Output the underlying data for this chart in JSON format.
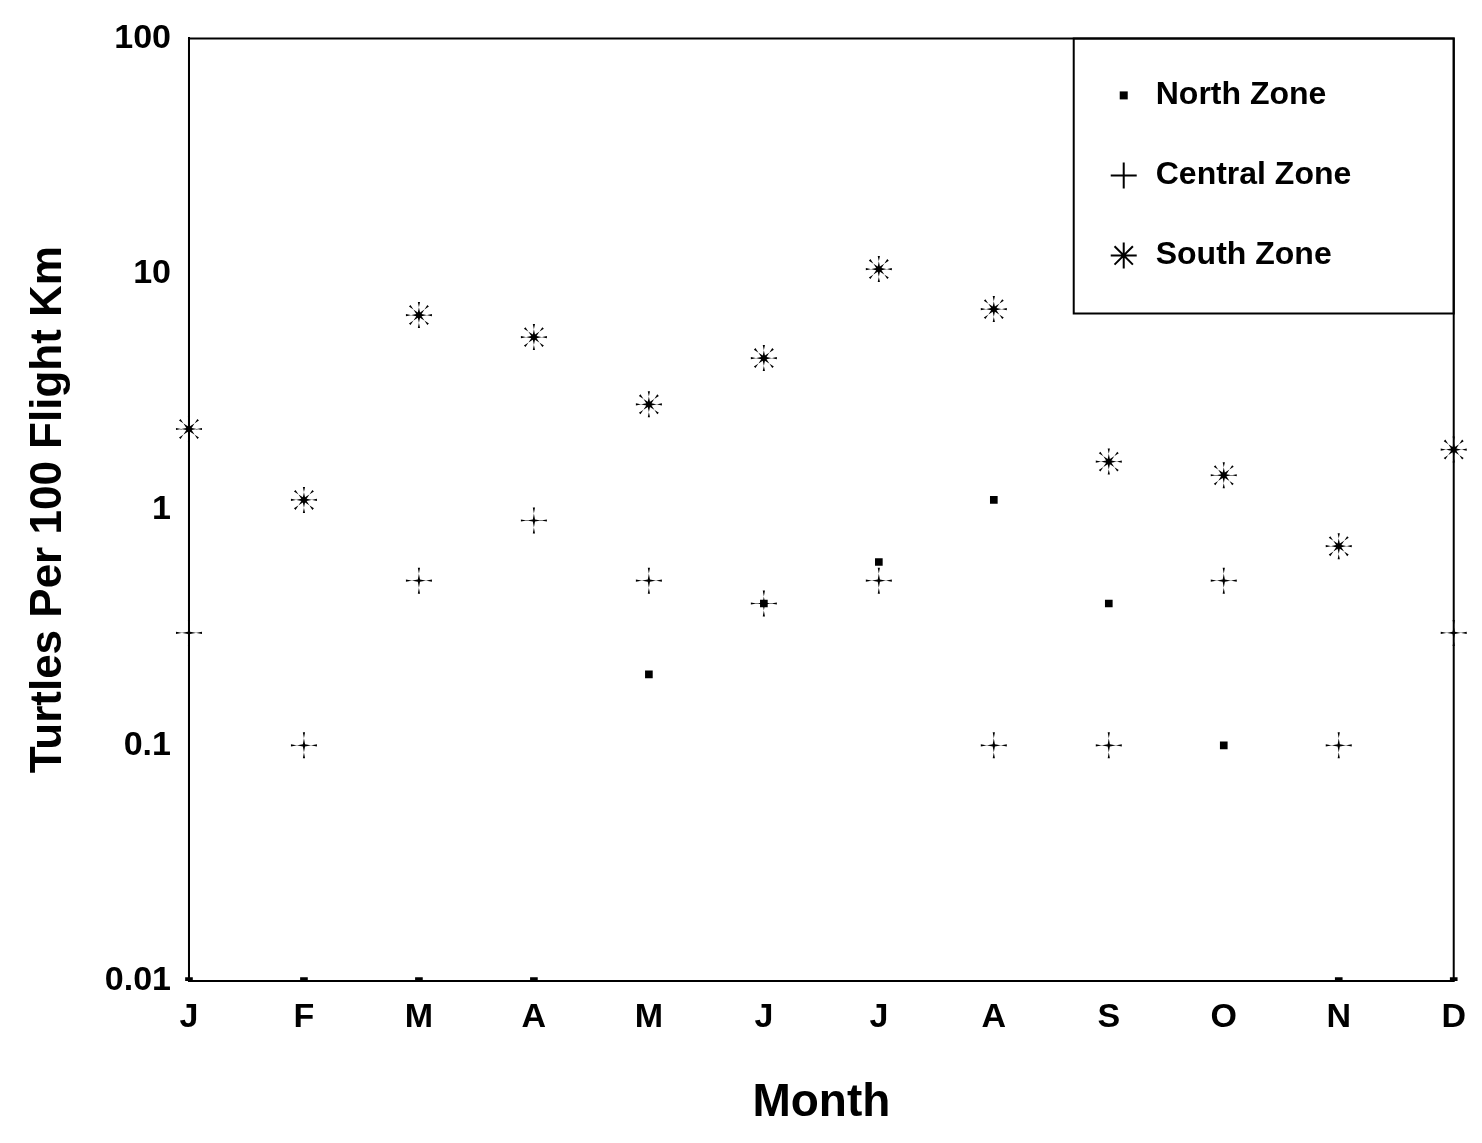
{
  "chart_data": {
    "type": "scatter",
    "xlabel": "Month",
    "ylabel": "Turtles Per 100 Flight Km",
    "categories": [
      "J",
      "F",
      "M",
      "A",
      "M",
      "J",
      "J",
      "A",
      "S",
      "O",
      "N",
      "D"
    ],
    "series": [
      {
        "name": "North Zone",
        "color": "#000000",
        "marker": "square",
        "values": [
          0.01,
          0.01,
          0.01,
          0.01,
          0.2,
          0.4,
          0.6,
          1.1,
          0.4,
          0.1,
          0.01,
          0.01
        ]
      },
      {
        "name": "Central Zone",
        "color": "#000000",
        "marker": "cross",
        "values": [
          0.3,
          0.1,
          0.5,
          0.9,
          0.5,
          0.4,
          0.5,
          0.1,
          0.1,
          0.5,
          0.1,
          0.3
        ]
      },
      {
        "name": "South Zone",
        "color": "#000000",
        "marker": "star",
        "values": [
          2.2,
          1.1,
          6.7,
          5.4,
          2.8,
          4.4,
          10.5,
          7.1,
          1.6,
          1.4,
          0.7,
          1.8
        ]
      }
    ],
    "log": true,
    "ylim": [
      0.01,
      100
    ],
    "yticks": [
      0.01,
      0.1,
      1,
      10,
      100
    ],
    "grid": false,
    "legend": "top right"
  }
}
